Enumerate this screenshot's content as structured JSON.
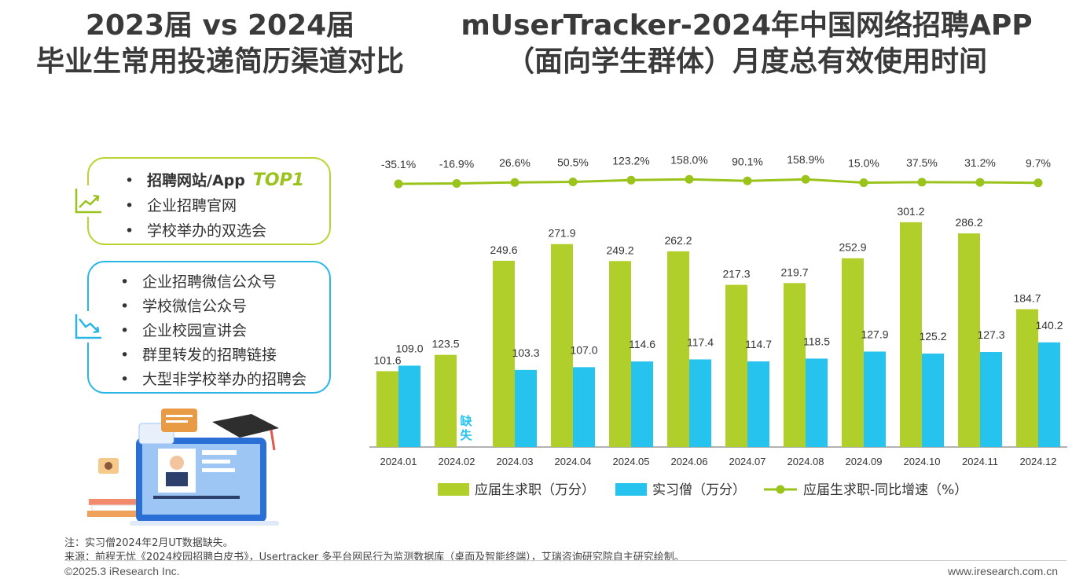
{
  "titles": {
    "left_line1": "2023届 vs 2024届",
    "left_line2": "毕业生常用投递简历渠道对比",
    "right_line1": "mUserTracker-2024年中国网络招聘APP",
    "right_line2": "（面向学生群体）月度总有效使用时间"
  },
  "channels_rising": {
    "icon": "trend-up-icon",
    "color": "#b8d432",
    "items": [
      "招聘网站/App",
      "企业招聘官网",
      "学校举办的双选会"
    ],
    "top_badge": "TOP1"
  },
  "channels_falling": {
    "icon": "trend-down-icon",
    "color": "#29b6e6",
    "items": [
      "企业招聘微信公众号",
      "学校微信公众号",
      "企业校园宣讲会",
      "群里转发的招聘链接",
      "大型非学校举办的招聘会"
    ]
  },
  "chart_data": {
    "type": "bar",
    "categories": [
      "2024.01",
      "2024.02",
      "2024.03",
      "2024.04",
      "2024.05",
      "2024.06",
      "2024.07",
      "2024.08",
      "2024.09",
      "2024.10",
      "2024.11",
      "2024.12"
    ],
    "series": [
      {
        "name": "应届生求职（万分）",
        "type": "bar",
        "color": "#b1cf2a",
        "values": [
          101.6,
          123.5,
          249.6,
          271.9,
          249.2,
          262.2,
          217.3,
          219.7,
          252.9,
          301.2,
          286.2,
          184.7
        ]
      },
      {
        "name": "实习僧（万分）",
        "type": "bar",
        "color": "#25c3ee",
        "values": [
          109.0,
          null,
          103.3,
          107.0,
          114.6,
          117.4,
          114.7,
          118.5,
          127.9,
          125.2,
          127.3,
          140.2
        ]
      },
      {
        "name": "应届生求职-同比增速（%）",
        "type": "line",
        "color": "#9ac31c",
        "values": [
          -35.1,
          -16.9,
          26.6,
          50.5,
          123.2,
          158.0,
          90.1,
          158.9,
          15.0,
          37.5,
          31.2,
          9.7
        ]
      }
    ],
    "missing_label": "缺失",
    "legend_position": "bottom",
    "grid": false
  },
  "footer": {
    "note": "注：实习僧2024年2月UT数据缺失。",
    "source": "来源：前程无忧《2024校园招聘白皮书》，Usertracker 多平台网民行为监测数据库（桌面及智能终端），艾瑞咨询研究院自主研究绘制。",
    "copyright": "©2025.3 iResearch Inc.",
    "website": "www.iresearch.com.cn"
  }
}
